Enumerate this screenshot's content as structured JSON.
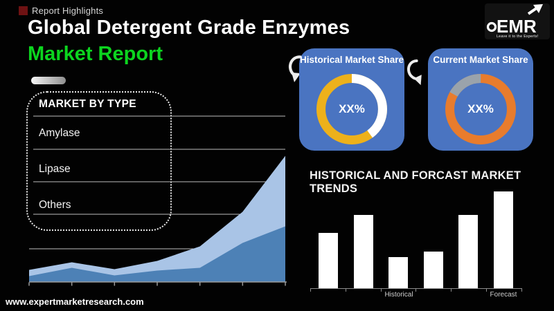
{
  "header": {
    "eyebrow": "Report Highlights",
    "title_line1": "Global Detergent Grade Enzymes",
    "title_line2": "Market Report",
    "title_color": "#ffffff",
    "accent_color": "#0cd51f",
    "bullet_color": "#6e1213"
  },
  "logo": {
    "text": "EMR",
    "tagline": "Leave it to the Experts!"
  },
  "market_by_type": {
    "title": "MARKET BY TYPE",
    "items": [
      "Amylase",
      "Lipase",
      "Others"
    ]
  },
  "footer": {
    "url": "www.expertmarketresearch.com"
  },
  "colors": {
    "card_blue": "#4a74c1",
    "donut_gold": "#edb11b",
    "donut_orange": "#e87c2d",
    "donut_gray": "#9aa3ab",
    "area_light_blue": "#a9c4e6",
    "area_dark_blue": "#4d81b6",
    "bar_white": "#ffffff",
    "gridline": "#bdbdbd"
  },
  "chart_data": [
    {
      "type": "area",
      "title": "",
      "x": [
        0,
        1,
        2,
        3,
        4,
        5,
        6
      ],
      "series": [
        {
          "name": "upper-band",
          "color": "#a9c4e6",
          "values": [
            17,
            28,
            18,
            30,
            51,
            101,
            182
          ]
        },
        {
          "name": "lower-band",
          "color": "#4d81b6",
          "values": [
            8,
            20,
            9,
            16,
            20,
            56,
            80
          ]
        }
      ],
      "unit": "relative-height",
      "gridlines": true,
      "x_tick_count": 7,
      "axis_labels": []
    },
    {
      "type": "bar",
      "title": "HISTORICAL AND FORCAST MARKET TRENDS",
      "values": [
        57,
        76,
        32,
        38,
        76,
        100
      ],
      "ylim": [
        0,
        100
      ],
      "bar_color": "#ffffff",
      "x_labels": [
        {
          "text": "Historical",
          "bar_index": 2
        },
        {
          "text": "Forecast",
          "bar_index": 5
        }
      ]
    },
    {
      "type": "pie",
      "title": "Historical Market Share",
      "center_label": "XX%",
      "slices": [
        {
          "name": "main",
          "pct": 60,
          "color": "#edb11b"
        },
        {
          "name": "remainder",
          "pct": 40,
          "color": "#ffffff",
          "start_deg": 0
        }
      ]
    },
    {
      "type": "pie",
      "title": "Current Market Share",
      "center_label": "XX%",
      "slices": [
        {
          "name": "main",
          "pct": 83,
          "color": "#e87c2d"
        },
        {
          "name": "remainder",
          "pct": 17,
          "color": "#9aa3ab",
          "start_deg": 299
        }
      ]
    }
  ]
}
